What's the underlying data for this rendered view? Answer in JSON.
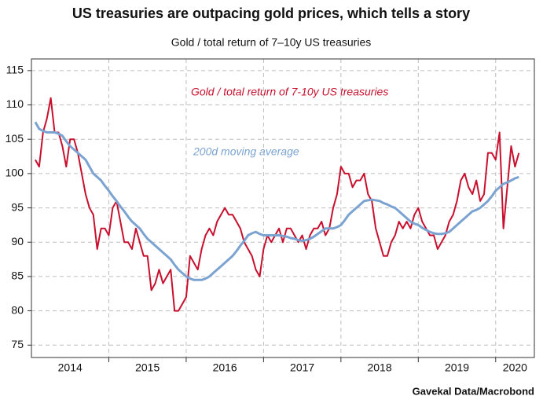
{
  "chart_data": {
    "type": "line",
    "title": "US treasuries are outpacing gold prices, which tells a story",
    "subtitle": "Gold / total return of 7–10y US treasuries",
    "source": "Gavekal Data/Macrobond",
    "x": [
      2014.05,
      2014.1,
      2014.15,
      2014.2,
      2014.25,
      2014.3,
      2014.35,
      2014.4,
      2014.45,
      2014.5,
      2014.55,
      2014.6,
      2014.65,
      2014.7,
      2014.75,
      2014.8,
      2014.85,
      2014.9,
      2014.95,
      2015.0,
      2015.05,
      2015.1,
      2015.15,
      2015.2,
      2015.25,
      2015.3,
      2015.35,
      2015.4,
      2015.45,
      2015.5,
      2015.55,
      2015.6,
      2015.65,
      2015.7,
      2015.75,
      2015.8,
      2015.85,
      2015.9,
      2015.95,
      2016.0,
      2016.05,
      2016.1,
      2016.15,
      2016.2,
      2016.25,
      2016.3,
      2016.35,
      2016.4,
      2016.45,
      2016.5,
      2016.55,
      2016.6,
      2016.65,
      2016.7,
      2016.75,
      2016.8,
      2016.85,
      2016.9,
      2016.95,
      2017.0,
      2017.05,
      2017.1,
      2017.15,
      2017.2,
      2017.25,
      2017.3,
      2017.35,
      2017.4,
      2017.45,
      2017.5,
      2017.55,
      2017.6,
      2017.65,
      2017.7,
      2017.75,
      2017.8,
      2017.85,
      2017.9,
      2017.95,
      2018.0,
      2018.05,
      2018.1,
      2018.15,
      2018.2,
      2018.25,
      2018.3,
      2018.35,
      2018.4,
      2018.45,
      2018.5,
      2018.55,
      2018.6,
      2018.65,
      2018.7,
      2018.75,
      2018.8,
      2018.85,
      2018.9,
      2018.95,
      2019.0,
      2019.05,
      2019.1,
      2019.15,
      2019.2,
      2019.25,
      2019.3,
      2019.35,
      2019.4,
      2019.45,
      2019.5,
      2019.55,
      2019.6,
      2019.65,
      2019.7,
      2019.75,
      2019.8,
      2019.85,
      2019.9,
      2019.95,
      2020.0,
      2020.05,
      2020.1,
      2020.15,
      2020.2,
      2020.25,
      2020.3
    ],
    "series": [
      {
        "name": "Gold / total return of 7-10y US treasuries",
        "color": "#c8102e",
        "values": [
          102,
          101,
          106,
          108,
          111,
          106,
          106,
          104,
          101,
          105,
          105,
          103,
          100,
          97,
          95,
          94,
          89,
          92,
          92,
          91,
          95,
          96,
          93,
          90,
          90,
          89,
          92,
          90,
          88,
          88,
          83,
          84,
          86,
          84,
          85,
          86,
          80,
          80,
          81,
          82,
          88,
          87,
          86,
          89,
          91,
          92,
          91,
          93,
          94,
          95,
          94,
          94,
          93,
          92,
          90,
          89,
          88,
          86,
          85,
          89,
          91,
          90,
          91,
          92,
          90,
          92,
          92,
          91,
          90,
          91,
          89,
          91,
          92,
          92,
          93,
          91,
          92,
          95,
          97,
          101,
          100,
          100,
          98,
          99,
          99,
          100,
          97,
          96,
          92,
          90,
          88,
          88,
          90,
          91,
          93,
          92,
          93,
          92,
          94,
          95,
          93,
          92,
          91,
          91,
          89,
          90,
          91,
          93,
          94,
          96,
          99,
          100,
          98,
          97,
          99,
          96,
          97,
          103,
          103,
          102,
          106,
          92,
          98,
          104,
          101,
          103
        ]
      },
      {
        "name": "200d moving average",
        "color": "#7ba3d2",
        "values": [
          107.5,
          106.5,
          106.2,
          106,
          106,
          106,
          105.8,
          105.5,
          104.7,
          104,
          103.5,
          103,
          102.5,
          102,
          101,
          100,
          99.5,
          99,
          98.2,
          97.5,
          96.7,
          96,
          95.2,
          94.5,
          93.7,
          93,
          92.5,
          92,
          91.2,
          90.5,
          90,
          89.5,
          89,
          88.5,
          88,
          87.5,
          86.7,
          86,
          85.5,
          85,
          84.7,
          84.5,
          84.5,
          84.5,
          84.7,
          85,
          85.5,
          86,
          86.5,
          87,
          87.5,
          88,
          88.7,
          89.5,
          90.2,
          91,
          91.3,
          91.5,
          91.2,
          91,
          91,
          91,
          91,
          91,
          90.9,
          90.8,
          90.6,
          90.5,
          90.3,
          90.2,
          90.3,
          90.5,
          90.8,
          91.2,
          91.6,
          92,
          92,
          92,
          92.2,
          92.5,
          93.2,
          94,
          94.5,
          95,
          95.5,
          96,
          96.1,
          96.2,
          96.1,
          96,
          95.7,
          95.5,
          95.2,
          95,
          94.5,
          94,
          93.5,
          93,
          92.7,
          92.5,
          92.1,
          91.8,
          91.5,
          91.3,
          91.2,
          91.2,
          91.3,
          91.5,
          92,
          92.5,
          93,
          93.5,
          94,
          94.5,
          94.7,
          95,
          95.5,
          96,
          96.7,
          97.5,
          98,
          98.5,
          98.7,
          99,
          99.3,
          99.5
        ]
      }
    ],
    "xlim": [
      2014.0,
      2020.5
    ],
    "xticks": [
      {
        "value": 2014.5,
        "label": "2014"
      },
      {
        "value": 2015.5,
        "label": "2015"
      },
      {
        "value": 2016.5,
        "label": "2016"
      },
      {
        "value": 2017.5,
        "label": "2017"
      },
      {
        "value": 2018.5,
        "label": "2018"
      },
      {
        "value": 2019.5,
        "label": "2019"
      },
      {
        "value": 2020.25,
        "label": "2020"
      }
    ],
    "xgrid": [
      2015,
      2016,
      2017,
      2018,
      2019,
      2020
    ],
    "ylim": [
      73.2,
      116.7
    ],
    "yticks": [
      75,
      80,
      85,
      90,
      95,
      100,
      105,
      110,
      115
    ],
    "grid": true
  }
}
